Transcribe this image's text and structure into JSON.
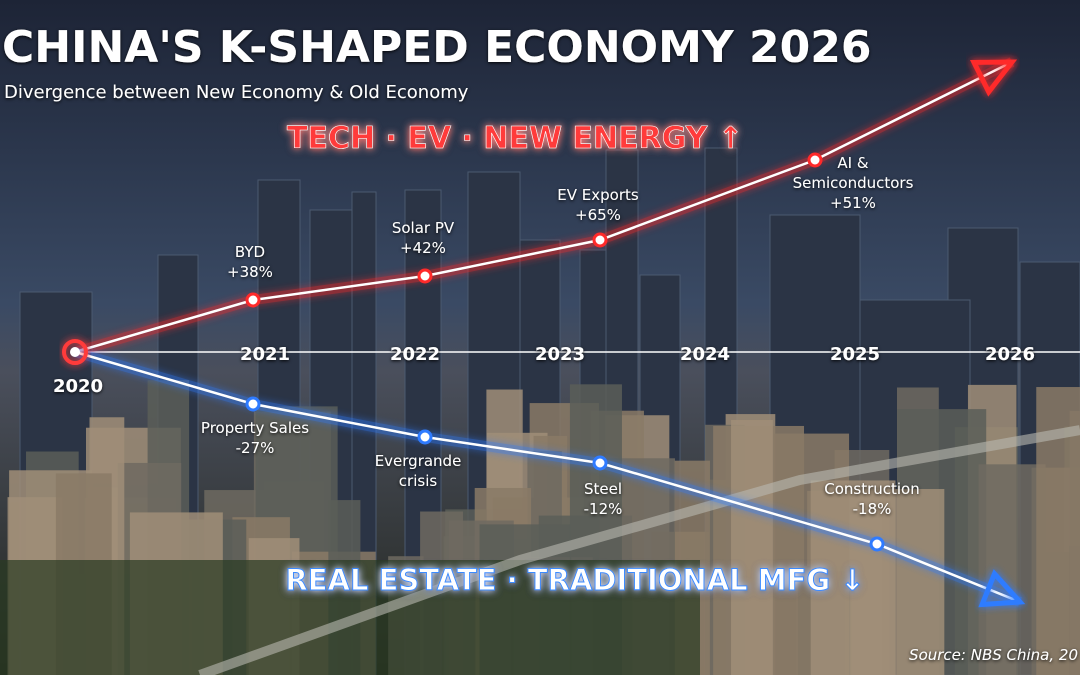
{
  "header": {
    "title": "CHINA'S K-SHAPED ECONOMY 2026",
    "subtitle": "Divergence between New Economy & Old Economy"
  },
  "upper_branch": {
    "label": "TECH · EV · NEW ENERGY ↑",
    "points": [
      {
        "lines": [
          "BYD",
          "+38%"
        ]
      },
      {
        "lines": [
          "Solar PV",
          "+42%"
        ]
      },
      {
        "lines": [
          "EV Exports",
          "+65%"
        ]
      },
      {
        "lines": [
          "AI &",
          "Semiconductors",
          "+51%"
        ]
      }
    ]
  },
  "lower_branch": {
    "label": "REAL ESTATE · TRADITIONAL MFG ↓",
    "points": [
      {
        "lines": [
          "Property Sales",
          "-27%"
        ]
      },
      {
        "lines": [
          "Evergrande",
          "crisis"
        ]
      },
      {
        "lines": [
          "Steel",
          "-12%"
        ]
      },
      {
        "lines": [
          "Construction",
          "-18%"
        ]
      }
    ]
  },
  "timeline": {
    "years": [
      "2020",
      "2021",
      "2022",
      "2023",
      "2024",
      "2025",
      "2026"
    ]
  },
  "source": "Source: NBS China, 20"
}
